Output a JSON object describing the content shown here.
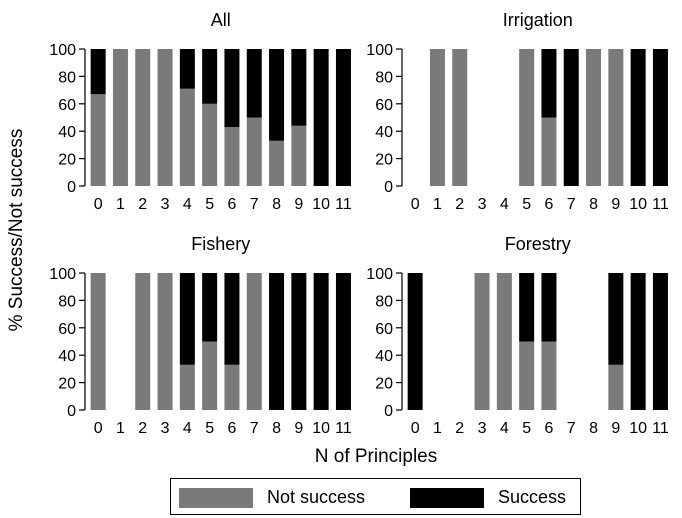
{
  "colors": {
    "not_success": "#7a7a7a",
    "success": "#000000"
  },
  "figure": {
    "ylabel": "% Success/Not success",
    "xlabel": "N of Principles",
    "yticks": [
      "0",
      "20",
      "40",
      "60",
      "80",
      "100"
    ],
    "categories": [
      "0",
      "1",
      "2",
      "3",
      "4",
      "5",
      "6",
      "7",
      "8",
      "9",
      "10",
      "11"
    ]
  },
  "legend": {
    "items": [
      {
        "label": "Not success",
        "color": "#7a7a7a"
      },
      {
        "label": "Success",
        "color": "#000000"
      }
    ]
  },
  "chart_data": [
    {
      "type": "bar",
      "stacked": true,
      "title": "All",
      "categories": [
        "0",
        "1",
        "2",
        "3",
        "4",
        "5",
        "6",
        "7",
        "8",
        "9",
        "10",
        "11"
      ],
      "ylim": [
        0,
        100
      ],
      "series": [
        {
          "name": "Not success",
          "values": [
            67,
            100,
            100,
            100,
            71,
            60,
            43,
            50,
            33,
            44,
            0,
            0
          ]
        },
        {
          "name": "Success",
          "values": [
            33,
            0,
            0,
            0,
            29,
            40,
            57,
            50,
            67,
            56,
            100,
            100
          ]
        }
      ]
    },
    {
      "type": "bar",
      "stacked": true,
      "title": "Irrigation",
      "categories": [
        "0",
        "1",
        "2",
        "3",
        "4",
        "5",
        "6",
        "7",
        "8",
        "9",
        "10",
        "11"
      ],
      "ylim": [
        0,
        100
      ],
      "series": [
        {
          "name": "Not success",
          "values": [
            0,
            100,
            100,
            0,
            0,
            100,
            50,
            0,
            100,
            100,
            0,
            0
          ]
        },
        {
          "name": "Success",
          "values": [
            0,
            0,
            0,
            0,
            0,
            0,
            50,
            100,
            0,
            0,
            100,
            100
          ]
        }
      ]
    },
    {
      "type": "bar",
      "stacked": true,
      "title": "Fishery",
      "categories": [
        "0",
        "1",
        "2",
        "3",
        "4",
        "5",
        "6",
        "7",
        "8",
        "9",
        "10",
        "11"
      ],
      "ylim": [
        0,
        100
      ],
      "series": [
        {
          "name": "Not success",
          "values": [
            100,
            0,
            100,
            100,
            33,
            50,
            33,
            100,
            0,
            0,
            0,
            0
          ]
        },
        {
          "name": "Success",
          "values": [
            0,
            0,
            0,
            0,
            67,
            50,
            67,
            0,
            100,
            100,
            100,
            100
          ]
        }
      ]
    },
    {
      "type": "bar",
      "stacked": true,
      "title": "Forestry",
      "categories": [
        "0",
        "1",
        "2",
        "3",
        "4",
        "5",
        "6",
        "7",
        "8",
        "9",
        "10",
        "11"
      ],
      "ylim": [
        0,
        100
      ],
      "series": [
        {
          "name": "Not success",
          "values": [
            0,
            0,
            0,
            100,
            100,
            50,
            50,
            0,
            0,
            33,
            0,
            0
          ]
        },
        {
          "name": "Success",
          "values": [
            100,
            0,
            0,
            0,
            0,
            50,
            50,
            0,
            0,
            67,
            100,
            100
          ]
        }
      ]
    }
  ]
}
